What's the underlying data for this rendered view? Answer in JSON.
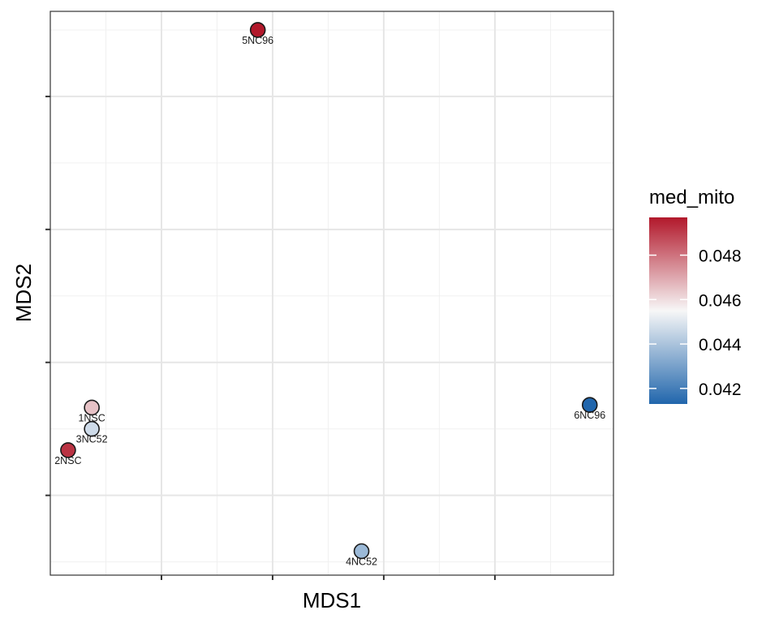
{
  "chart_data": {
    "type": "scatter",
    "xlabel": "MDS1",
    "ylabel": "MDS2",
    "x_tick_labels_shown": false,
    "y_tick_labels_shown": false,
    "grid": true,
    "legend_position": "right",
    "color_variable": "med_mito",
    "color_scale": {
      "type": "gradient",
      "low_color": "#2166ac",
      "mid_color": "#f7f7f7",
      "high_color": "#b2182b",
      "min": 0.0413,
      "max": 0.0497,
      "breaks": [
        0.042,
        0.044,
        0.046,
        0.048
      ],
      "break_labels": [
        "0.042",
        "0.044",
        "0.046",
        "0.048"
      ]
    },
    "points": [
      {
        "label": "1NSC",
        "x": -0.86,
        "y": -0.42,
        "med_mito": 0.0465
      },
      {
        "label": "2NSC",
        "x": -0.94,
        "y": -0.58,
        "med_mito": 0.0492
      },
      {
        "label": "3NC52",
        "x": -0.86,
        "y": -0.5,
        "med_mito": 0.0447
      },
      {
        "label": "4NC52",
        "x": 0.05,
        "y": -0.96,
        "med_mito": 0.0437
      },
      {
        "label": "5NC96",
        "x": -0.3,
        "y": 1.0,
        "med_mito": 0.0497
      },
      {
        "label": "6NC96",
        "x": 0.82,
        "y": -0.41,
        "med_mito": 0.0413
      }
    ]
  }
}
